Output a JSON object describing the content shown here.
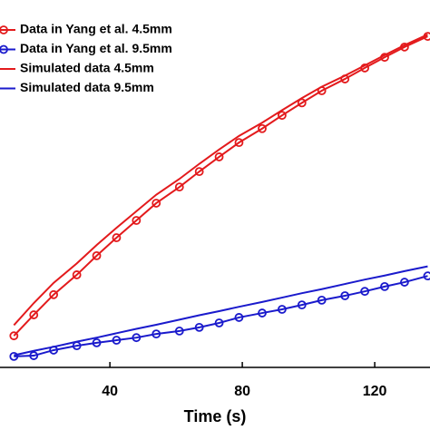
{
  "chart_data": {
    "type": "line",
    "x_label": "Time (s)",
    "xlim": [
      6.8,
      136.7
    ],
    "xticks": [
      40,
      80,
      120
    ],
    "ylim": [
      0,
      100
    ],
    "x": [
      11,
      17,
      23,
      30,
      36,
      42,
      48,
      54,
      61,
      67,
      73,
      79,
      86,
      92,
      98,
      104,
      111,
      117,
      123,
      129,
      136
    ],
    "series": [
      {
        "name": "Data in Yang et al. 4.5mm",
        "color": "#e31a1c",
        "marker": "circle",
        "values": [
          8.6,
          14.3,
          19.8,
          25.2,
          30.4,
          35.3,
          40.0,
          44.7,
          49.1,
          53.3,
          57.3,
          61.2,
          65.0,
          68.6,
          72.0,
          75.3,
          78.5,
          81.5,
          84.4,
          87.2,
          90.1
        ]
      },
      {
        "name": "Data in Yang et al. 9.5mm",
        "color": "#1a1acc",
        "marker": "circle",
        "values": [
          3.0,
          3.2,
          4.7,
          5.9,
          6.7,
          7.4,
          8.1,
          9.1,
          9.9,
          10.9,
          12.1,
          13.6,
          14.8,
          15.8,
          17.0,
          18.3,
          19.5,
          20.7,
          22.0,
          23.2,
          24.9
        ]
      },
      {
        "name": "Simulated data 4.5mm",
        "color": "#e31a1c",
        "marker": "none",
        "values": [
          11.5,
          17.5,
          23.0,
          28.3,
          33.3,
          38.0,
          42.5,
          47.0,
          51.3,
          55.4,
          59.3,
          63.0,
          66.6,
          70.0,
          73.3,
          76.4,
          79.4,
          82.2,
          85.0,
          87.7,
          90.6
        ]
      },
      {
        "name": "Simulated data 9.5mm",
        "color": "#1a1acc",
        "marker": "none",
        "values": [
          3.3,
          4.5,
          5.6,
          7.0,
          8.1,
          9.3,
          10.5,
          11.6,
          13.0,
          14.2,
          15.3,
          16.5,
          17.8,
          19.0,
          20.2,
          21.3,
          22.7,
          23.9,
          25.0,
          26.2,
          27.5
        ]
      }
    ]
  }
}
